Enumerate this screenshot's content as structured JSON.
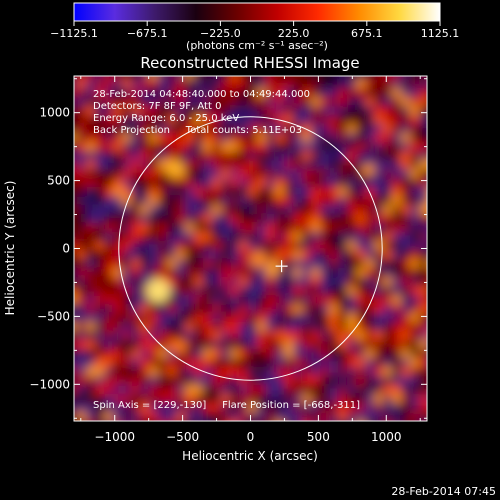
{
  "colorbar": {
    "tick_labels": [
      "−1125.1",
      "−675.1",
      "−225.0",
      "225.0",
      "675.1",
      "1125.1"
    ],
    "tick_values": [
      -1125.1,
      -675.1,
      -225.0,
      225.0,
      675.1,
      1125.1
    ],
    "range": [
      -1125.1,
      1125.1
    ],
    "units_label": "(photons cm⁻² s⁻¹ asec⁻²)",
    "colormap_stops": [
      "#0000ff",
      "#5a2ce0",
      "#3d1a6a",
      "#1a0010",
      "#6a0000",
      "#c00000",
      "#ff2a00",
      "#ff8a00",
      "#ffd840",
      "#ffffff"
    ]
  },
  "chart_data": {
    "type": "heatmap",
    "title": "Reconstructed RHESSI Image",
    "xlabel": "Heliocentric X (arcsec)",
    "ylabel": "Heliocentric Y (arcsec)",
    "xlim": [
      -1300,
      1300
    ],
    "ylim": [
      -1270,
      1270
    ],
    "x_ticks": [
      -1000,
      -500,
      0,
      500,
      1000
    ],
    "x_tick_labels": [
      "−1000",
      "−500",
      "0",
      "500",
      "1000"
    ],
    "y_ticks": [
      -1000,
      -500,
      0,
      500,
      1000
    ],
    "y_tick_labels": [
      "−1000",
      "−500",
      "0",
      "500",
      "1000"
    ],
    "annotations": [
      "28-Feb-2014 04:48:40.000 to 04:49:44.000",
      "Detectors: 7F 8F 9F, Att 0",
      "Energy Range: 6.0 - 25.0 keV",
      "Back Projection     Total counts: 5.11E+03"
    ],
    "bottom_annotation": "Spin Axis = [229,-130]     Flare Position = [-668,-311]",
    "solar_limb": {
      "center": [
        0,
        0
      ],
      "radius_arcsec": 970
    },
    "spin_axis": [
      229,
      -130
    ],
    "flare_position": [
      -668,
      -311
    ],
    "colors": {
      "limb": "#ffffff",
      "marker": "#ffffff",
      "axes": "#ffffff"
    }
  },
  "footer": {
    "timestamp": "28-Feb-2014 07:45"
  }
}
